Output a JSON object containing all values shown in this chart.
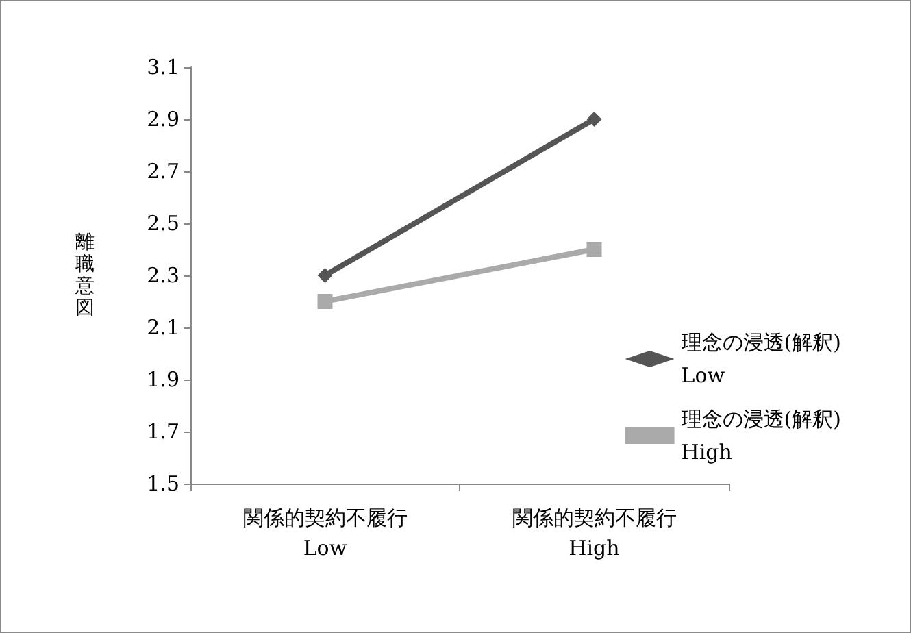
{
  "chart_data": {
    "type": "line",
    "ylabel": "離職意図",
    "categories": [
      "関係的契約不履行\nLow",
      "関係的契約不履行\nHigh"
    ],
    "series": [
      {
        "name": "理念の浸透(解釈)\nLow",
        "color": "#555555",
        "values": [
          2.3,
          2.9
        ],
        "marker": "diamond"
      },
      {
        "name": "理念の浸透(解釈)\nHigh",
        "color": "#aaaaaa",
        "values": [
          2.2,
          2.4
        ],
        "marker": "square"
      }
    ],
    "ylim": [
      1.5,
      3.1
    ],
    "yticks": [
      1.5,
      1.7,
      1.9,
      2.1,
      2.3,
      2.5,
      2.7,
      2.9,
      3.1
    ],
    "grid": false,
    "legend": "right",
    "line_style": "solid"
  }
}
